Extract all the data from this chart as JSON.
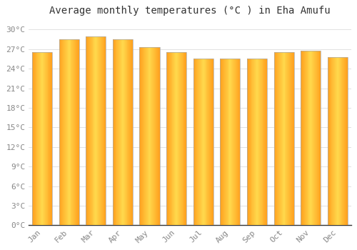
{
  "months": [
    "Jan",
    "Feb",
    "Mar",
    "Apr",
    "May",
    "Jun",
    "Jul",
    "Aug",
    "Sep",
    "Oct",
    "Nov",
    "Dec"
  ],
  "values": [
    26.5,
    28.5,
    29.0,
    28.5,
    27.3,
    26.5,
    25.5,
    25.5,
    25.5,
    26.5,
    26.8,
    25.8
  ],
  "title": "Average monthly temperatures (°C ) in Eha Amufu",
  "bar_color_center": "#FFD84D",
  "bar_color_edge": "#FFA020",
  "bar_border_color": "#AAAAAA",
  "background_color": "#FFFFFF",
  "grid_color": "#DDDDDD",
  "ylabel_ticks": [
    0,
    3,
    6,
    9,
    12,
    15,
    18,
    21,
    24,
    27,
    30
  ],
  "ylim": [
    0,
    31.5
  ],
  "title_fontsize": 10,
  "tick_fontsize": 8,
  "font_family": "monospace",
  "tick_color": "#888888",
  "bar_width": 0.75
}
